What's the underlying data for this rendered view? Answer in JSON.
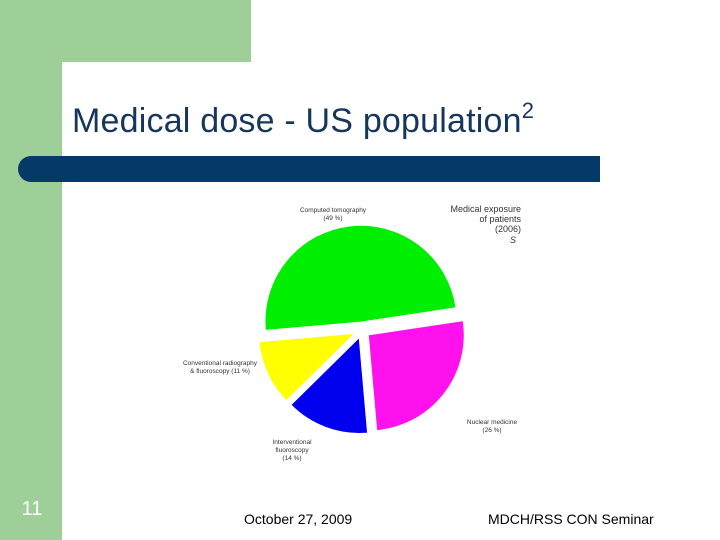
{
  "slide": {
    "title": "Medical dose - US population",
    "title_superscript": "2",
    "number": "11",
    "footer_date": "October 27, 2009",
    "footer_right": "MDCH/RSS CON Seminar"
  },
  "colors": {
    "sidebar_green": "#9ecf98",
    "title_bar": "#053a67",
    "title_text": "#17365d"
  },
  "chart_data": {
    "type": "pie",
    "title": "Medical exposure of patients (2006)",
    "title_lines": [
      "Medical exposure",
      "of patients",
      "(2006)"
    ],
    "footnote": "S",
    "slices": [
      {
        "name": "Computed tomography",
        "pct_label": "(49 %)",
        "value": 49,
        "color": "#00ee00"
      },
      {
        "name": "Nuclear medicine",
        "pct_label": "(26 %)",
        "value": 26,
        "color": "#ff11ee"
      },
      {
        "name": "Interventional fluoroscopy",
        "pct_label": "(14 %)",
        "value": 14,
        "color": "#0000ee"
      },
      {
        "name": "Conventional radiography & fluoroscopy",
        "pct_label": "(11 %)",
        "value": 11,
        "color": "#ffff00"
      }
    ]
  }
}
